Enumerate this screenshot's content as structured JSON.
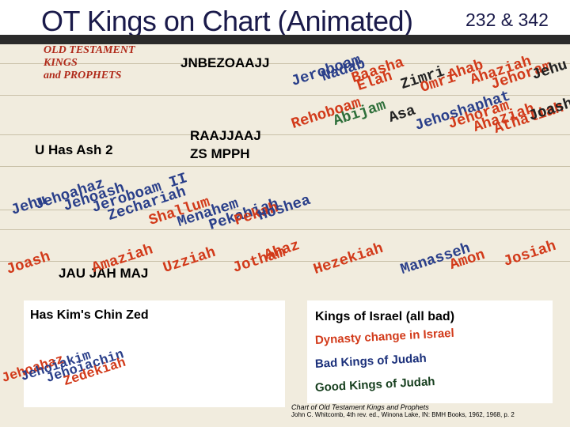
{
  "header": {
    "title": "OT Kings on Chart (Animated)",
    "pages": "232 & 342"
  },
  "chart_header": {
    "ot_title_line1": "OLD TESTAMENT KINGS",
    "ot_title_line2": "and PROPHETS"
  },
  "labels": {
    "jnbe": "JNBEZOAAJJ",
    "raaj": "RAAJJAAJ",
    "zs": "ZS MPPH",
    "uhas": "U Has Ash 2",
    "jau": "JAU JAH MAJ",
    "haskim": "Has Kim's Chin  Zed"
  },
  "israel_kings": [
    "Jeroboam",
    "Nadab",
    "Baasha",
    "Elah",
    "Zimri",
    "Omri",
    "Ahab",
    "Ahaziah",
    "Jehoram",
    "Jehu"
  ],
  "judah_kings_top": [
    "Rehoboam",
    "Abijam",
    "Asa",
    "Jehoshaphat",
    "Jehoram",
    "Ahaziah",
    "Athaliah",
    "Joash"
  ],
  "middle_israel": [
    "Jehu",
    "Jehoahaz",
    "Jehoash",
    "Jeroboam II",
    "Zechariah",
    "Shallum",
    "Menahem",
    "Pekahiah",
    "Pekah",
    "Hoshea"
  ],
  "lower_judah": [
    "Joash",
    "Amaziah",
    "Uzziah",
    "Jotham",
    "Ahaz",
    "Hezekiah",
    "Manasseh",
    "Amon",
    "Josiah"
  ],
  "final_kings": [
    "Jehoahaz",
    "Jehoiakim",
    "Jehoiachin",
    "Zedekiah"
  ],
  "legend": {
    "israel": "Kings of Israel (all bad)",
    "dynasty": "Dynasty change in Israel",
    "bad_judah": "Bad Kings of Judah",
    "good_judah": "Good Kings of Judah"
  },
  "caption": {
    "line1": "Chart of Old Testament Kings and Prophets",
    "line2": "John C. Whitcomb, 4th rev. ed., Winona Lake, IN: BMH Books, 1962, 1968, p. 2"
  },
  "colors": {
    "dynasty": "#d23a1a",
    "bad": "#2a3f8a",
    "good": "#2e6f3a"
  }
}
